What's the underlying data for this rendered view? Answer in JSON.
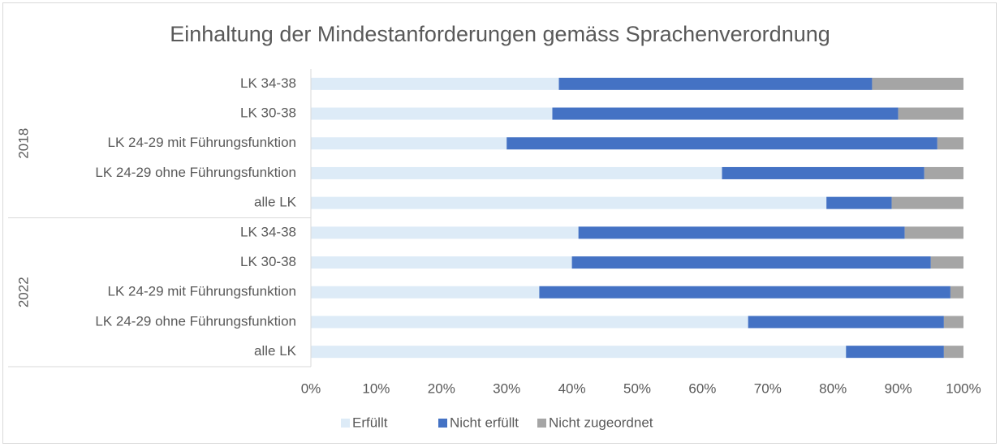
{
  "chart_data": {
    "type": "stacked-bar",
    "orientation": "horizontal",
    "title": "Einhaltung der Mindestanforderungen gemäss Sprachenverordnung",
    "groups": [
      {
        "name": "2018",
        "categories": [
          "LK 34-38",
          "LK 30-38",
          "LK 24-29 mit Führungsfunktion",
          "LK 24-29 ohne Führungsfunktion",
          "alle LK"
        ]
      },
      {
        "name": "2022",
        "categories": [
          "LK 34-38",
          "LK 30-38",
          "LK 24-29 mit Führungsfunktion",
          "LK 24-29 ohne Führungsfunktion",
          "alle LK"
        ]
      }
    ],
    "series": [
      {
        "name": "Erfüllt",
        "color": "#ddebf7",
        "values": [
          38,
          37,
          30,
          63,
          79,
          41,
          40,
          35,
          67,
          82
        ]
      },
      {
        "name": "Nicht erfüllt",
        "color": "#4472c4",
        "values": [
          48,
          53,
          66,
          31,
          10,
          50,
          55,
          63,
          30,
          15
        ]
      },
      {
        "name": "Nicht zugeordnet",
        "color": "#a5a5a5",
        "values": [
          14,
          10,
          4,
          6,
          11,
          9,
          5,
          2,
          3,
          3
        ]
      }
    ],
    "xlim": [
      0,
      100
    ],
    "xticks": [
      {
        "value": 0,
        "label": "0%"
      },
      {
        "value": 10,
        "label": "10%"
      },
      {
        "value": 20,
        "label": "20%"
      },
      {
        "value": 30,
        "label": "30%"
      },
      {
        "value": 40,
        "label": "40%"
      },
      {
        "value": 50,
        "label": "50%"
      },
      {
        "value": 60,
        "label": "60%"
      },
      {
        "value": 70,
        "label": "70%"
      },
      {
        "value": 80,
        "label": "80%"
      },
      {
        "value": 90,
        "label": "90%"
      },
      {
        "value": 100,
        "label": "100%"
      }
    ],
    "grid": false,
    "legend": "bottom"
  }
}
